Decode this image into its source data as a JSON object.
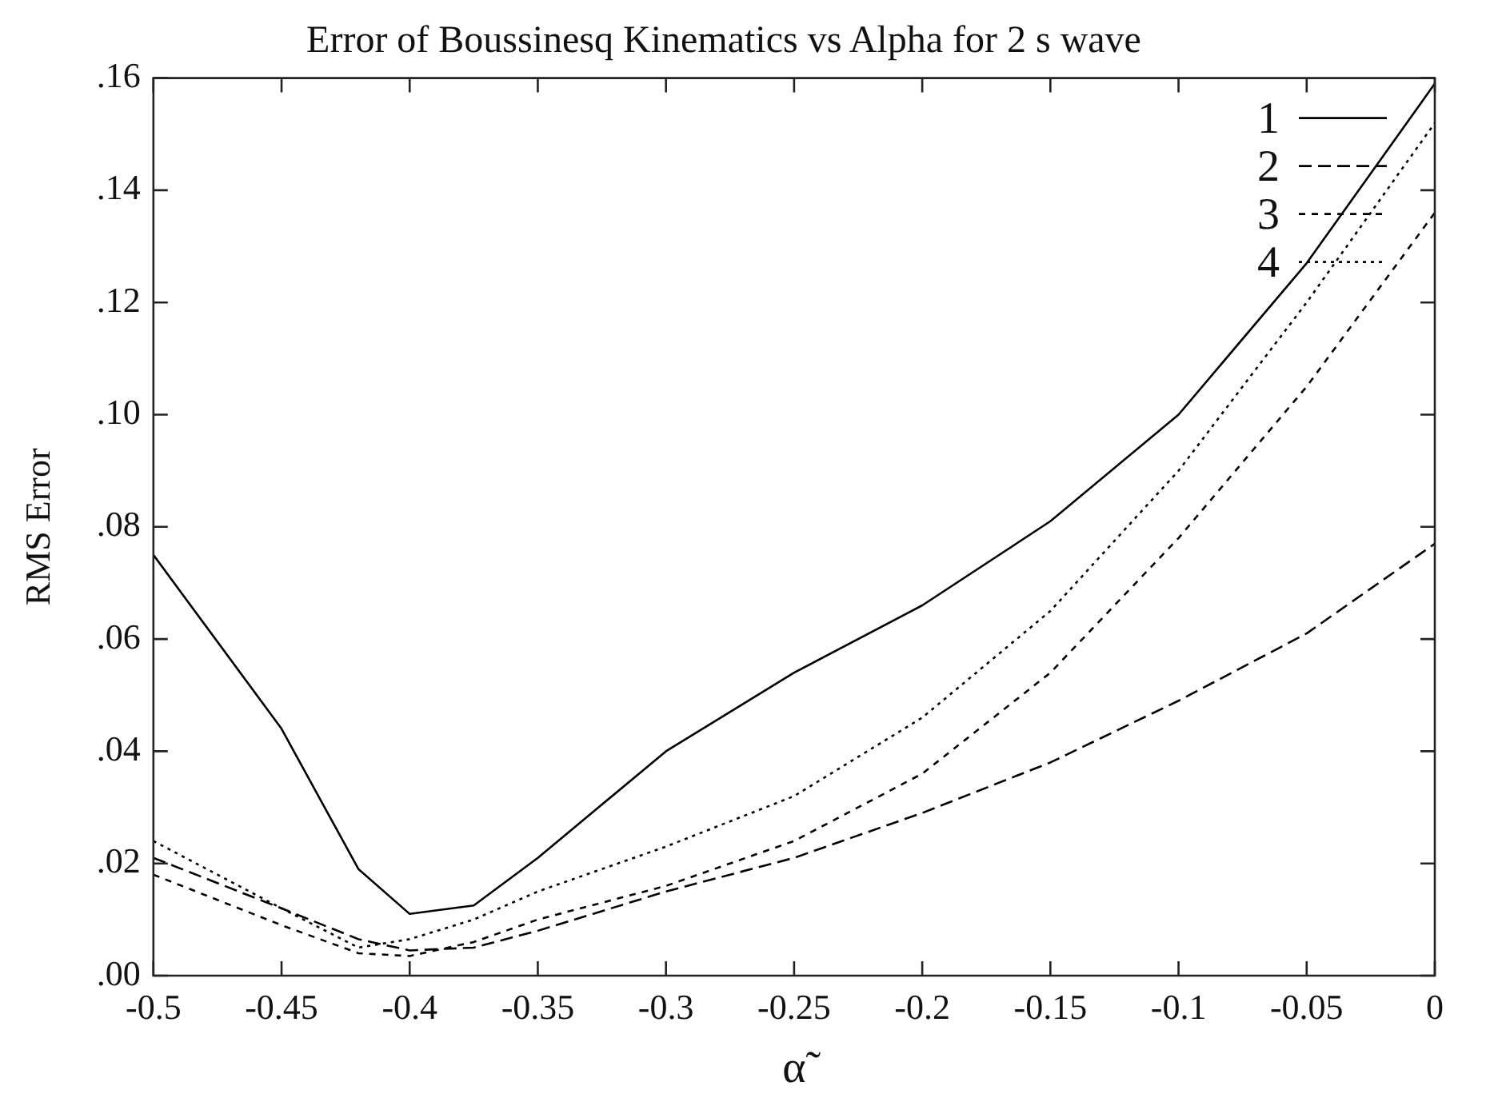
{
  "chart_data": {
    "type": "line",
    "title": "Error of Boussinesq Kinematics vs Alpha for 2 s wave",
    "xlabel": "α̃",
    "ylabel": "RMS Error",
    "x": [
      -0.5,
      -0.45,
      -0.42,
      -0.4,
      -0.375,
      -0.35,
      -0.3,
      -0.25,
      -0.2,
      -0.15,
      -0.1,
      -0.05,
      0
    ],
    "series": [
      {
        "name": "1",
        "color": "#000000",
        "line_style": "solid",
        "values": [
          0.075,
          0.044,
          0.019,
          0.011,
          0.0125,
          0.021,
          0.04,
          0.054,
          0.066,
          0.081,
          0.1,
          0.127,
          0.159
        ]
      },
      {
        "name": "2",
        "color": "#000000",
        "line_style": "dashed",
        "values": [
          0.021,
          0.012,
          0.0065,
          0.0045,
          0.005,
          0.008,
          0.015,
          0.021,
          0.029,
          0.038,
          0.049,
          0.061,
          0.077
        ]
      },
      {
        "name": "3",
        "color": "#000000",
        "line_style": "dashed",
        "values": [
          0.018,
          0.009,
          0.004,
          0.0035,
          0.006,
          0.01,
          0.016,
          0.024,
          0.036,
          0.054,
          0.078,
          0.105,
          0.136
        ]
      },
      {
        "name": "4",
        "color": "#000000",
        "line_style": "dotted",
        "values": [
          0.024,
          0.012,
          0.005,
          0.0065,
          0.01,
          0.015,
          0.023,
          0.032,
          0.046,
          0.065,
          0.09,
          0.12,
          0.152
        ]
      }
    ],
    "xlim": [
      -0.5,
      0
    ],
    "xticks": [
      -0.5,
      -0.45,
      -0.4,
      -0.35,
      -0.3,
      -0.25,
      -0.2,
      -0.15,
      -0.1,
      -0.05,
      0
    ],
    "ylim": [
      0,
      0.16
    ],
    "yticks": [
      {
        "value": 0,
        "label": ".00"
      },
      {
        "value": 0.02,
        "label": ".02"
      },
      {
        "value": 0.04,
        "label": ".04"
      },
      {
        "value": 0.06,
        "label": ".06"
      },
      {
        "value": 0.08,
        "label": ".08"
      },
      {
        "value": 0.1,
        "label": ".10"
      },
      {
        "value": 0.12,
        "label": ".12"
      },
      {
        "value": 0.14,
        "label": ".14"
      },
      {
        "value": 0.16,
        "label": ".16"
      }
    ],
    "grid": false,
    "legend": "top right",
    "marker": "none"
  }
}
